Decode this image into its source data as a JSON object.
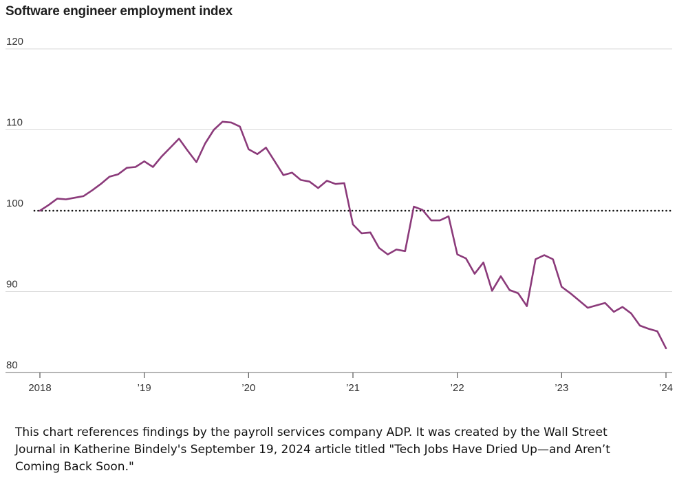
{
  "chart_data": {
    "type": "line",
    "title": "Software engineer employment index",
    "xlabel": "",
    "ylabel": "",
    "ylim": [
      80,
      120
    ],
    "xlim": [
      "2018-01",
      "2024-01"
    ],
    "yticks": [
      {
        "value": 80,
        "label": "80"
      },
      {
        "value": 90,
        "label": "90"
      },
      {
        "value": 100,
        "label": "100"
      },
      {
        "value": 110,
        "label": "110"
      },
      {
        "value": 120,
        "label": "120"
      }
    ],
    "xticks": [
      {
        "value": "2018-01",
        "label": "2018"
      },
      {
        "value": "2019-01",
        "label": "’19"
      },
      {
        "value": "2020-01",
        "label": "’20"
      },
      {
        "value": "2021-01",
        "label": "’21"
      },
      {
        "value": "2022-01",
        "label": "’22"
      },
      {
        "value": "2023-01",
        "label": "’23"
      },
      {
        "value": "2024-01",
        "label": "’24"
      }
    ],
    "reference_line": {
      "value": 100,
      "style": "dotted"
    },
    "grid": "horizontal",
    "line_color": "#8b3a7a",
    "series": [
      {
        "x": [
          "2018-01",
          "2018-02",
          "2018-03",
          "2018-04",
          "2018-05",
          "2018-06",
          "2018-07",
          "2018-08",
          "2018-09",
          "2018-10",
          "2018-11",
          "2018-12",
          "2019-01",
          "2019-02",
          "2019-03",
          "2019-04",
          "2019-05",
          "2019-06",
          "2019-07",
          "2019-08",
          "2019-09",
          "2019-10",
          "2019-11",
          "2019-12",
          "2020-01",
          "2020-02",
          "2020-03",
          "2020-04",
          "2020-05",
          "2020-06",
          "2020-07",
          "2020-08",
          "2020-09",
          "2020-10",
          "2020-11",
          "2020-12",
          "2021-01",
          "2021-02",
          "2021-03",
          "2021-04",
          "2021-05",
          "2021-06",
          "2021-07",
          "2021-08",
          "2021-09",
          "2021-10",
          "2021-11",
          "2021-12",
          "2022-01",
          "2022-02",
          "2022-03",
          "2022-04",
          "2022-05",
          "2022-06",
          "2022-07",
          "2022-08",
          "2022-09",
          "2022-10",
          "2022-11",
          "2022-12",
          "2023-01",
          "2023-02",
          "2023-03",
          "2023-04",
          "2023-05",
          "2023-06",
          "2023-07",
          "2023-08",
          "2023-09",
          "2023-10",
          "2023-11",
          "2023-12",
          "2024-01"
        ],
        "values": [
          100.0,
          100.7,
          101.5,
          101.4,
          101.6,
          101.8,
          102.5,
          103.3,
          104.2,
          104.5,
          105.3,
          105.4,
          106.1,
          105.4,
          106.7,
          107.8,
          108.9,
          107.4,
          106.0,
          108.3,
          110.0,
          111.0,
          110.9,
          110.4,
          107.6,
          107.0,
          107.8,
          106.1,
          104.4,
          104.7,
          103.8,
          103.6,
          102.8,
          103.7,
          103.3,
          103.4,
          98.3,
          97.2,
          97.3,
          95.4,
          94.6,
          95.2,
          95.0,
          100.5,
          100.1,
          98.8,
          98.8,
          99.3,
          94.6,
          94.1,
          92.2,
          93.6,
          90.1,
          91.9,
          90.2,
          89.8,
          88.2,
          94.0,
          94.5,
          94.0,
          90.6,
          89.8,
          88.9,
          88.0,
          88.3,
          88.6,
          87.5,
          88.1,
          87.3,
          85.8,
          85.4,
          85.1,
          83.0
        ]
      }
    ]
  },
  "caption": "This chart references findings by the payroll services company ADP. It was created by the Wall Street Journal in Katherine Bindely's September 19, 2024 article titled \"Tech Jobs Have Dried Up—and Aren’t Coming Back Soon.\""
}
